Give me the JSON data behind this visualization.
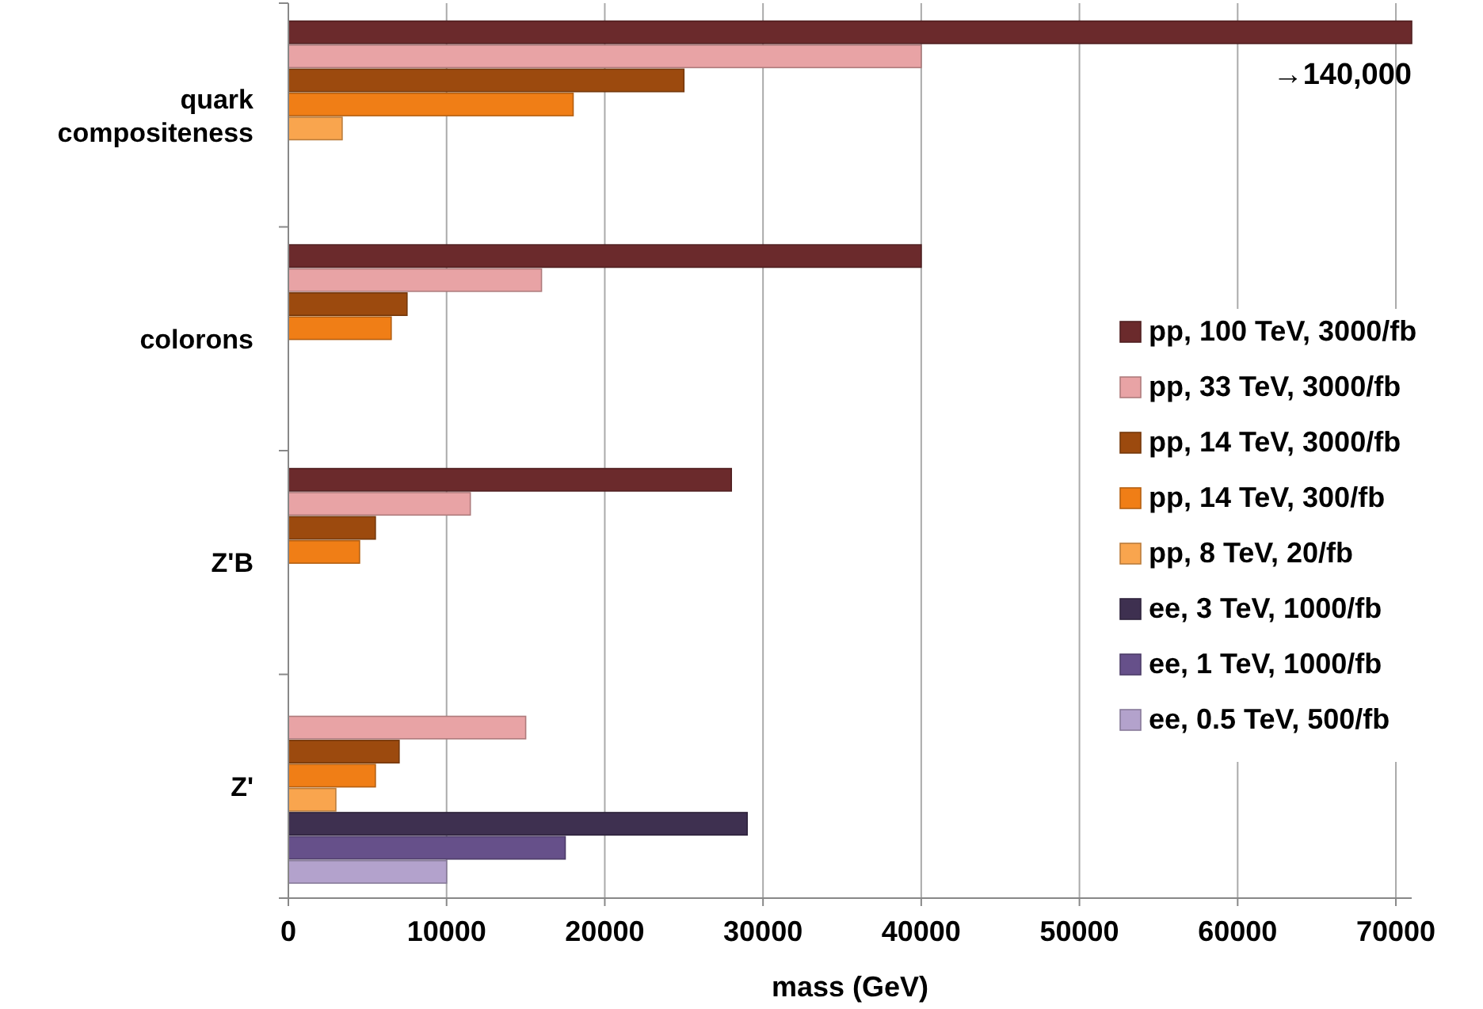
{
  "chart_data": {
    "type": "bar",
    "orientation": "horizontal",
    "xlabel": "mass (GeV)",
    "categories": [
      "quark compositeness",
      "colorons",
      "Z'B",
      "Z'"
    ],
    "series": [
      {
        "name": "pp, 100 TeV, 3000/fb",
        "color": "#6b2a2c",
        "values": [
          71000,
          40000,
          28000,
          null
        ]
      },
      {
        "name": "pp, 33 TeV, 3000/fb",
        "color": "#e8a3a5",
        "values": [
          40000,
          16000,
          11500,
          15000
        ]
      },
      {
        "name": "pp, 14 TeV, 3000/fb",
        "color": "#9c4a0e",
        "values": [
          25000,
          7500,
          5500,
          7000
        ]
      },
      {
        "name": "pp, 14 TeV, 300/fb",
        "color": "#f07e16",
        "values": [
          18000,
          6500,
          4500,
          5500
        ]
      },
      {
        "name": "pp, 8 TeV, 20/fb",
        "color": "#f9a54e",
        "values": [
          3400,
          null,
          null,
          3000
        ]
      },
      {
        "name": "ee, 3 TeV, 1000/fb",
        "color": "#3e3050",
        "values": [
          null,
          null,
          null,
          29000
        ]
      },
      {
        "name": "ee, 1 TeV, 1000/fb",
        "color": "#66508a",
        "values": [
          null,
          null,
          null,
          17500
        ]
      },
      {
        "name": "ee, 0.5 TeV, 500/fb",
        "color": "#b3a2cc",
        "values": [
          null,
          null,
          null,
          10000
        ]
      }
    ],
    "xlim": [
      0,
      71000
    ],
    "xticks": [
      0,
      10000,
      20000,
      30000,
      40000,
      50000,
      60000,
      70000
    ],
    "grid": "x",
    "legend": "right",
    "annotations": [
      "→140,000"
    ]
  }
}
